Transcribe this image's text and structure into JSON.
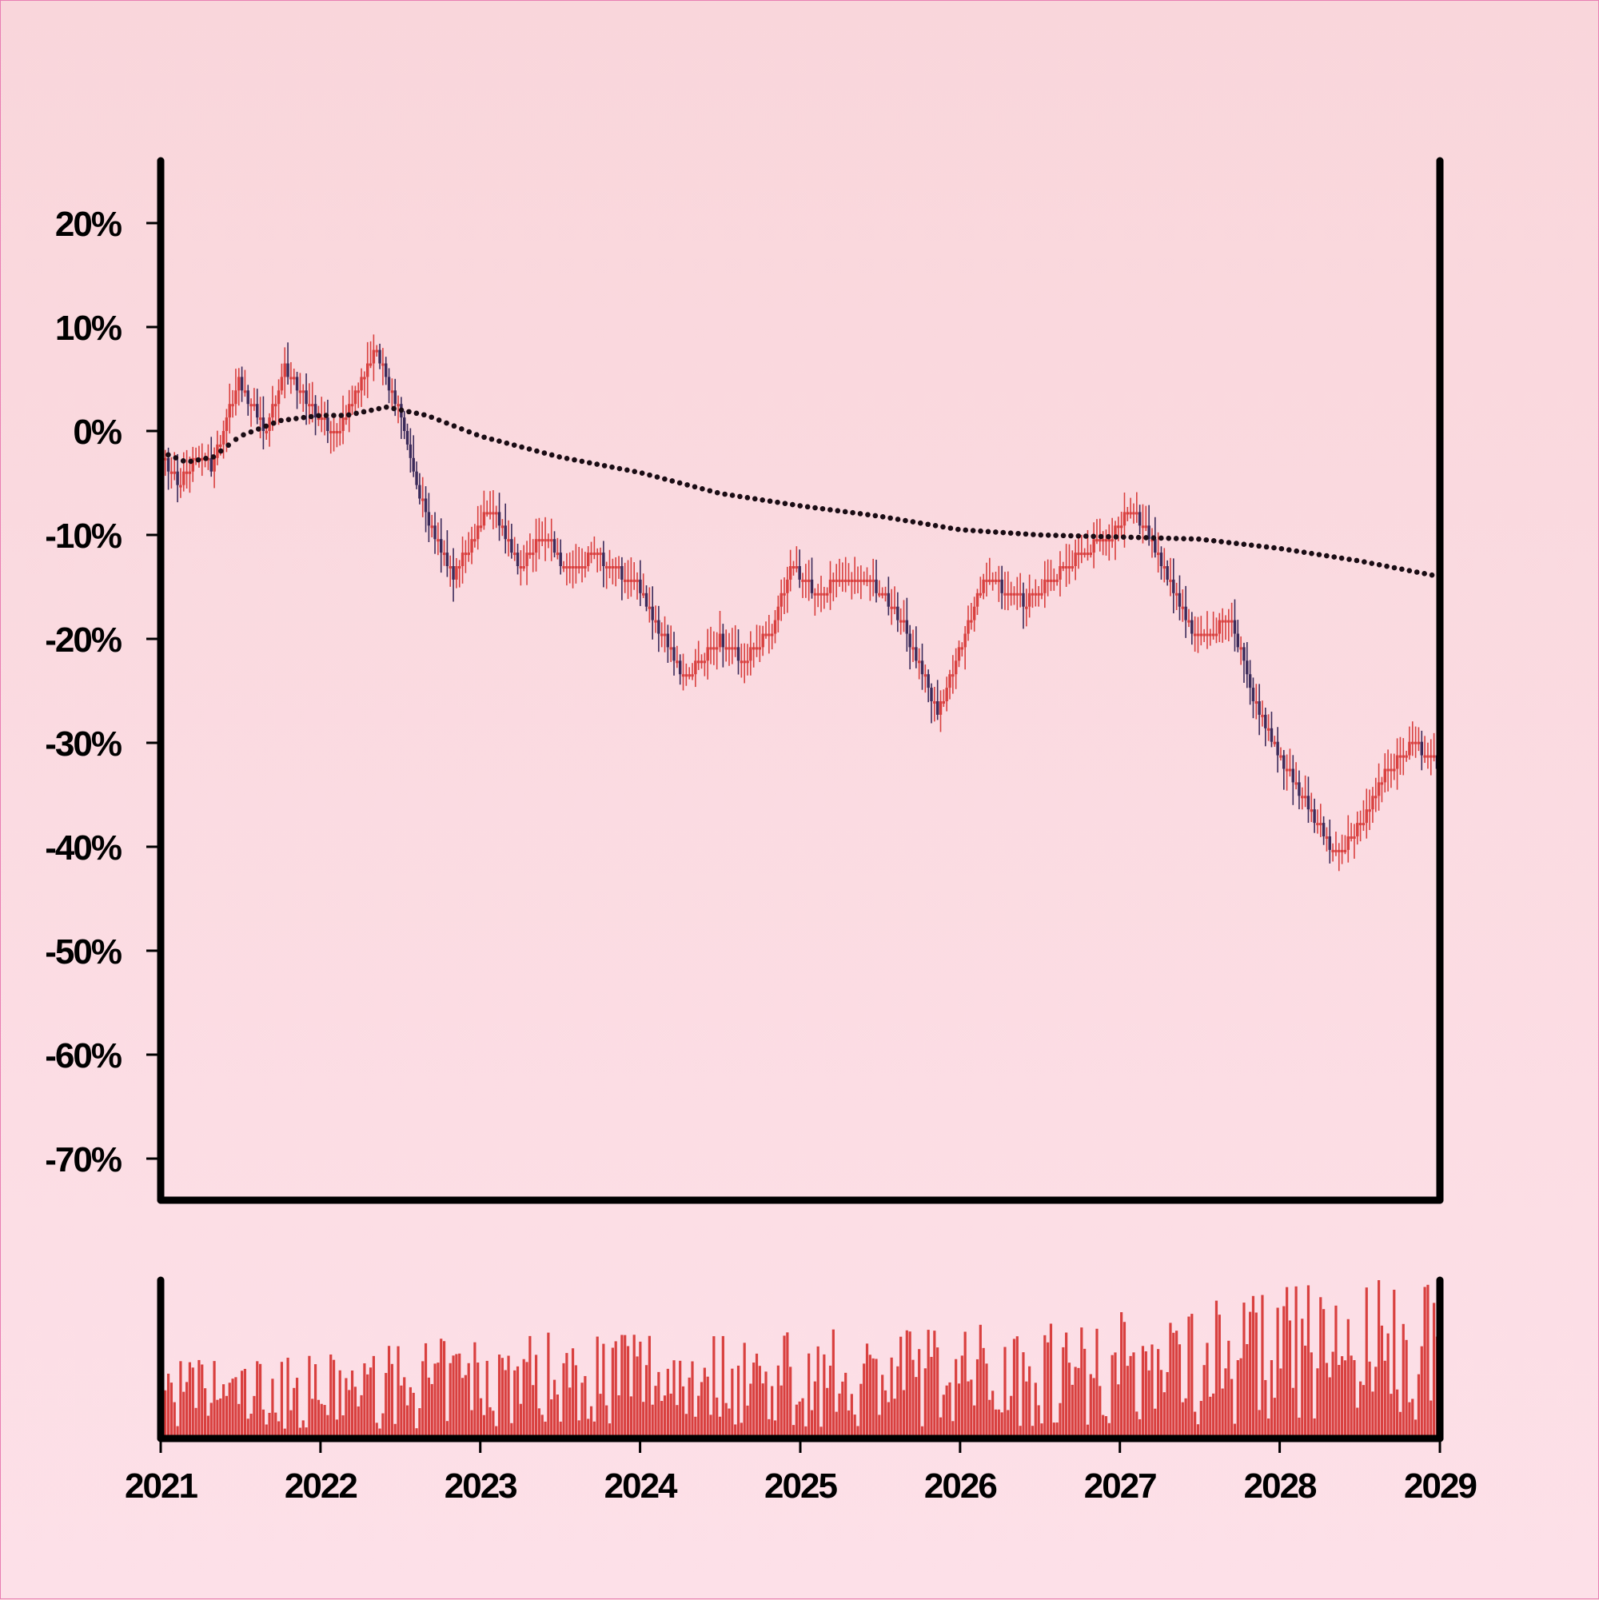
{
  "chart_data": {
    "type": "candlestick",
    "title": "",
    "xlabel": "",
    "ylabel": "",
    "x_domain": [
      "2021-01-01",
      "2029-01-01"
    ],
    "x_ticks": [
      "2021",
      "2022",
      "2023",
      "2024",
      "2025",
      "2026",
      "2027",
      "2028",
      "2029"
    ],
    "ylim": [
      -74,
      26
    ],
    "y_ticks": [
      20,
      10,
      0,
      -10,
      -20,
      -30,
      -40,
      -50,
      -60,
      -70
    ],
    "y_tick_labels": [
      "20%",
      "10%",
      "0%",
      "-10%",
      "-20%",
      "-30%",
      "-40%",
      "-50%",
      "-60%",
      "-70%"
    ],
    "grid": false,
    "colors": {
      "up": "#d9403f",
      "down": "#3b2a5a",
      "ma": "#1a0c14",
      "volume": "#d9403f",
      "axis": "#000000"
    },
    "price_path": [
      [
        "2021-01-01",
        -2
      ],
      [
        "2021-02-15",
        -5
      ],
      [
        "2021-04-01",
        -2
      ],
      [
        "2021-05-01",
        -3.5
      ],
      [
        "2021-07-01",
        5
      ],
      [
        "2021-09-01",
        0
      ],
      [
        "2021-10-15",
        6
      ],
      [
        "2022-01-01",
        1
      ],
      [
        "2022-02-15",
        0
      ],
      [
        "2022-04-01",
        4
      ],
      [
        "2022-05-10",
        8
      ],
      [
        "2022-07-01",
        2
      ],
      [
        "2022-09-01",
        -8
      ],
      [
        "2022-11-01",
        -14
      ],
      [
        "2023-02-01",
        -7
      ],
      [
        "2023-04-01",
        -13
      ],
      [
        "2023-06-01",
        -10
      ],
      [
        "2023-07-15",
        -13
      ],
      [
        "2023-10-01",
        -12
      ],
      [
        "2024-01-01",
        -15
      ],
      [
        "2024-04-15",
        -24
      ],
      [
        "2024-07-01",
        -20
      ],
      [
        "2024-09-01",
        -22
      ],
      [
        "2024-11-01",
        -19
      ],
      [
        "2024-12-15",
        -13
      ],
      [
        "2025-02-15",
        -16
      ],
      [
        "2025-04-01",
        -14
      ],
      [
        "2025-07-01",
        -15
      ],
      [
        "2025-09-01",
        -19
      ],
      [
        "2025-11-15",
        -27
      ],
      [
        "2026-03-01",
        -14
      ],
      [
        "2026-06-01",
        -16.5
      ],
      [
        "2026-10-01",
        -12
      ],
      [
        "2026-12-15",
        -10
      ],
      [
        "2027-02-01",
        -7
      ],
      [
        "2027-04-01",
        -12
      ],
      [
        "2027-07-01",
        -20
      ],
      [
        "2027-09-15",
        -18
      ],
      [
        "2027-11-01",
        -25
      ],
      [
        "2028-01-01",
        -31
      ],
      [
        "2028-05-15",
        -41
      ],
      [
        "2028-07-15",
        -37
      ],
      [
        "2028-09-01",
        -33
      ],
      [
        "2028-11-01",
        -30
      ],
      [
        "2028-12-31",
        -32
      ]
    ],
    "moving_average": [
      [
        "2021-01-01",
        -2
      ],
      [
        "2021-03-01",
        -3
      ],
      [
        "2021-05-01",
        -2.5
      ],
      [
        "2021-07-01",
        -0.5
      ],
      [
        "2021-10-01",
        1
      ],
      [
        "2022-01-01",
        1.5
      ],
      [
        "2022-03-01",
        1.5
      ],
      [
        "2022-06-01",
        2.3
      ],
      [
        "2022-09-01",
        1.5
      ],
      [
        "2023-01-01",
        -0.5
      ],
      [
        "2023-07-01",
        -2.5
      ],
      [
        "2024-01-01",
        -4
      ],
      [
        "2024-07-01",
        -6
      ],
      [
        "2025-01-01",
        -7.2
      ],
      [
        "2025-07-01",
        -8.2
      ],
      [
        "2026-01-01",
        -9.5
      ],
      [
        "2026-07-01",
        -10
      ],
      [
        "2027-01-01",
        -10.2
      ],
      [
        "2027-07-01",
        -10.4
      ],
      [
        "2028-01-01",
        -11.3
      ],
      [
        "2028-07-01",
        -12.5
      ],
      [
        "2028-12-31",
        -14
      ]
    ],
    "volume_trend": [
      [
        "2021-01-01",
        0.35
      ],
      [
        "2022-01-01",
        0.35
      ],
      [
        "2023-01-01",
        0.45
      ],
      [
        "2024-01-01",
        0.5
      ],
      [
        "2025-01-01",
        0.45
      ],
      [
        "2026-01-01",
        0.5
      ],
      [
        "2027-01-01",
        0.55
      ],
      [
        "2028-01-01",
        0.65
      ],
      [
        "2029-01-01",
        0.7
      ]
    ]
  }
}
